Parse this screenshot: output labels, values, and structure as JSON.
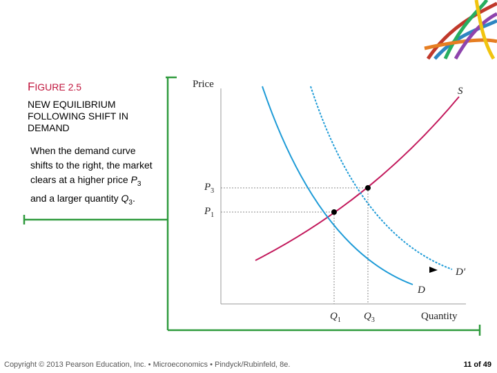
{
  "header": {
    "figure": "FIGURE 2.5",
    "title": "NEW EQUILIBRIUM FOLLOWING SHIFT IN DEMAND",
    "description": [
      "When the demand curve shifts to the right, the market clears at a higher price ",
      "P",
      "3",
      " and a larger quantity ",
      "Q",
      "3",
      "."
    ]
  },
  "diagram": {
    "y_axis": "Price",
    "x_axis": "Quantity",
    "supply": "S",
    "demand": "D",
    "new_demand": "D′",
    "price_labels": [
      {
        "symbol": "P",
        "sub": "3"
      },
      {
        "symbol": "P",
        "sub": "1"
      }
    ],
    "quantity_labels": [
      {
        "symbol": "Q",
        "sub": "1"
      },
      {
        "symbol": "Q",
        "sub": "3"
      }
    ]
  },
  "footer": {
    "copyright": "Copyright © 2013 Pearson Education, Inc. • Microeconomics • Pindyck/Rubinfeld, 8e.",
    "page": "11 of 49"
  }
}
